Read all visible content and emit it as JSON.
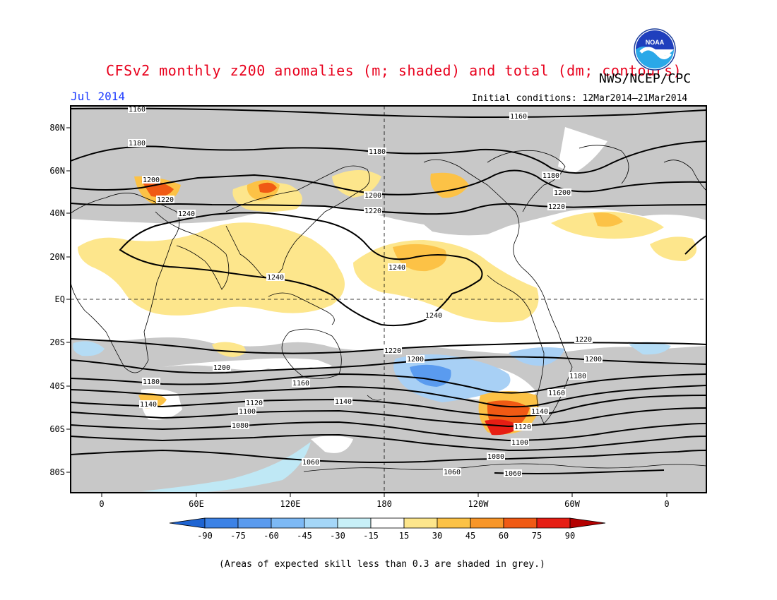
{
  "header": {
    "title": "CFSv2 monthly z200 anomalies (m; shaded) and total (dm; contours)",
    "agency": "NWS/NCEP/CPC",
    "valid_month": "Jul 2014",
    "initial_conditions": "Initial conditions: 12Mar2014–21Mar2014",
    "logo_text": "NOAA"
  },
  "map": {
    "lat_labels": [
      "80N",
      "60N",
      "40N",
      "20N",
      "EQ",
      "20S",
      "40S",
      "60S",
      "80S"
    ],
    "lon_labels": [
      "0",
      "60E",
      "120E",
      "180",
      "120W",
      "60W",
      "0"
    ],
    "contour_labels": [
      "1160",
      "1160",
      "1180",
      "1180",
      "1180",
      "1200",
      "1200",
      "1200",
      "1220",
      "1220",
      "1220",
      "1240",
      "1240",
      "1240",
      "1240",
      "1220",
      "1220",
      "1200",
      "1200",
      "1200",
      "1180",
      "1180",
      "1160",
      "1160",
      "1140",
      "1140",
      "1140",
      "1120",
      "1120",
      "1100",
      "1100",
      "1080",
      "1080",
      "1060",
      "1060",
      "1060"
    ]
  },
  "legend": {
    "tick_labels": [
      "-90",
      "-75",
      "-60",
      "-45",
      "-30",
      "-15",
      "15",
      "30",
      "45",
      "60",
      "75",
      "90"
    ],
    "colors": [
      "#1e64d2",
      "#3c82e6",
      "#5a9bef",
      "#7db9f5",
      "#a5d7f8",
      "#c8f0f8",
      "#ffffff",
      "#fde68c",
      "#fcc246",
      "#f89628",
      "#f05a14",
      "#e61e14",
      "#b40000"
    ]
  },
  "footnote": "(Areas of expected skill less than 0.3 are shaded in grey.)"
}
